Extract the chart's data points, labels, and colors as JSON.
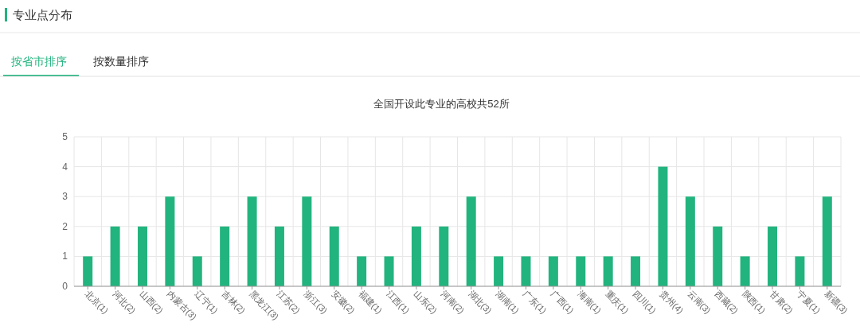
{
  "chart_data": {
    "type": "bar",
    "title": "全国开设此专业的高校共52所",
    "annotations": [
      "专业点分布",
      "按省市排序",
      "按数量排序"
    ],
    "categories": [
      "北京(1)",
      "河北(2)",
      "山西(2)",
      "内蒙古(3)",
      "辽宁(1)",
      "吉林(2)",
      "黑龙江(3)",
      "江苏(2)",
      "浙江(3)",
      "安徽(2)",
      "福建(1)",
      "江西(1)",
      "山东(2)",
      "河南(2)",
      "湖北(3)",
      "湖南(1)",
      "广东(1)",
      "广西(1)",
      "海南(1)",
      "重庆(1)",
      "四川(1)",
      "贵州(4)",
      "云南(3)",
      "西藏(2)",
      "陕西(1)",
      "甘肃(2)",
      "宁夏(1)",
      "新疆(3)"
    ],
    "values": [
      1,
      2,
      2,
      3,
      1,
      2,
      3,
      2,
      3,
      2,
      1,
      1,
      2,
      2,
      3,
      1,
      1,
      1,
      1,
      1,
      1,
      4,
      3,
      2,
      1,
      2,
      1,
      3
    ],
    "color": "#22b47e",
    "ylim": [
      0,
      5
    ],
    "yticks": [
      0,
      1,
      2,
      3,
      4,
      5
    ],
    "grid": true
  }
}
